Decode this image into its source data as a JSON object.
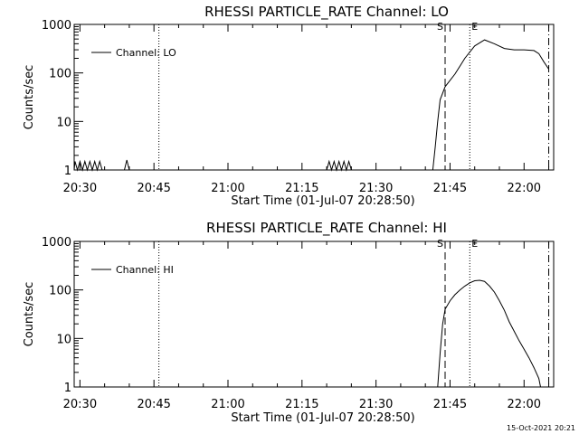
{
  "timestamp": "15-Oct-2021 20:21",
  "chart_data": [
    {
      "type": "line",
      "title": "RHESSI PARTICLE_RATE Channel: LO",
      "xlabel": "Start Time (01-Jul-07 20:28:50)",
      "ylabel": "Counts/sec",
      "yscale": "log",
      "xlim": [
        "20:28:50",
        "22:06:00"
      ],
      "ylim": [
        1,
        1000
      ],
      "xticks": [
        "20:30",
        "20:45",
        "21:00",
        "21:15",
        "21:30",
        "21:45",
        "22:00"
      ],
      "yticks": [
        "1",
        "10",
        "100",
        "1000"
      ],
      "legend": "Channel: LO",
      "legend_position": "top-left",
      "markers": {
        "S": "21:44",
        "E": "21:49"
      },
      "vlines": [
        {
          "t": "20:46",
          "style": "dotted"
        },
        {
          "t": "21:44",
          "style": "dashed"
        },
        {
          "t": "21:49",
          "style": "dotted"
        },
        {
          "t": "22:05",
          "style": "dashdot"
        }
      ],
      "series": [
        {
          "name": "Channel: LO",
          "x": [
            "20:28:50",
            "20:29",
            "20:29:30",
            "20:30",
            "20:30:30",
            "20:31",
            "20:31:30",
            "20:32",
            "20:32:30",
            "20:33",
            "20:33:30",
            "20:34",
            "20:34:30",
            "20:35",
            "20:39",
            "20:39:30",
            "20:40",
            "21:20",
            "21:20:30",
            "21:21",
            "21:21:30",
            "21:22",
            "21:22:30",
            "21:23",
            "21:23:30",
            "21:24",
            "21:24:30",
            "21:25",
            "21:25:30",
            "21:41:30",
            "21:42",
            "21:42:30",
            "21:43",
            "21:44",
            "21:46",
            "21:48",
            "21:50",
            "21:52",
            "21:54",
            "21:56",
            "21:58",
            "22:00",
            "22:02",
            "22:03",
            "22:04",
            "22:05"
          ],
          "y": [
            1,
            1.5,
            1,
            1.5,
            1,
            1.5,
            1,
            1.5,
            1,
            1.5,
            1,
            1.5,
            1,
            1,
            1,
            1.6,
            1,
            1,
            1.5,
            1,
            1.5,
            1,
            1.5,
            1,
            1.5,
            1,
            1.5,
            1,
            1,
            1,
            3,
            10,
            28,
            52,
            95,
            200,
            360,
            480,
            400,
            320,
            300,
            300,
            290,
            250,
            170,
            120
          ]
        }
      ]
    },
    {
      "type": "line",
      "title": "RHESSI PARTICLE_RATE Channel: HI",
      "xlabel": "Start Time (01-Jul-07 20:28:50)",
      "ylabel": "Counts/sec",
      "yscale": "log",
      "xlim": [
        "20:28:50",
        "22:06:00"
      ],
      "ylim": [
        1,
        1000
      ],
      "xticks": [
        "20:30",
        "20:45",
        "21:00",
        "21:15",
        "21:30",
        "21:45",
        "22:00"
      ],
      "yticks": [
        "1",
        "10",
        "100",
        "1000"
      ],
      "legend": "Channel: HI",
      "legend_position": "top-left",
      "markers": {
        "S": "21:44",
        "E": "21:49"
      },
      "vlines": [
        {
          "t": "20:46",
          "style": "dotted"
        },
        {
          "t": "21:44",
          "style": "dashed"
        },
        {
          "t": "21:49",
          "style": "dotted"
        },
        {
          "t": "22:05",
          "style": "dashdot"
        }
      ],
      "series": [
        {
          "name": "Channel: HI",
          "x": [
            "21:42:30",
            "21:43",
            "21:43:30",
            "21:44",
            "21:45",
            "21:46",
            "21:47",
            "21:48",
            "21:49",
            "21:50",
            "21:51",
            "21:52",
            "21:53",
            "21:54",
            "21:55",
            "21:56",
            "21:57",
            "21:58",
            "21:59",
            "22:00",
            "22:01",
            "22:02",
            "22:03",
            "22:03:20"
          ],
          "y": [
            1,
            5,
            20,
            40,
            60,
            80,
            100,
            120,
            140,
            155,
            158,
            150,
            120,
            90,
            60,
            38,
            22,
            14,
            9,
            6,
            4,
            2.5,
            1.5,
            1
          ]
        }
      ]
    }
  ]
}
